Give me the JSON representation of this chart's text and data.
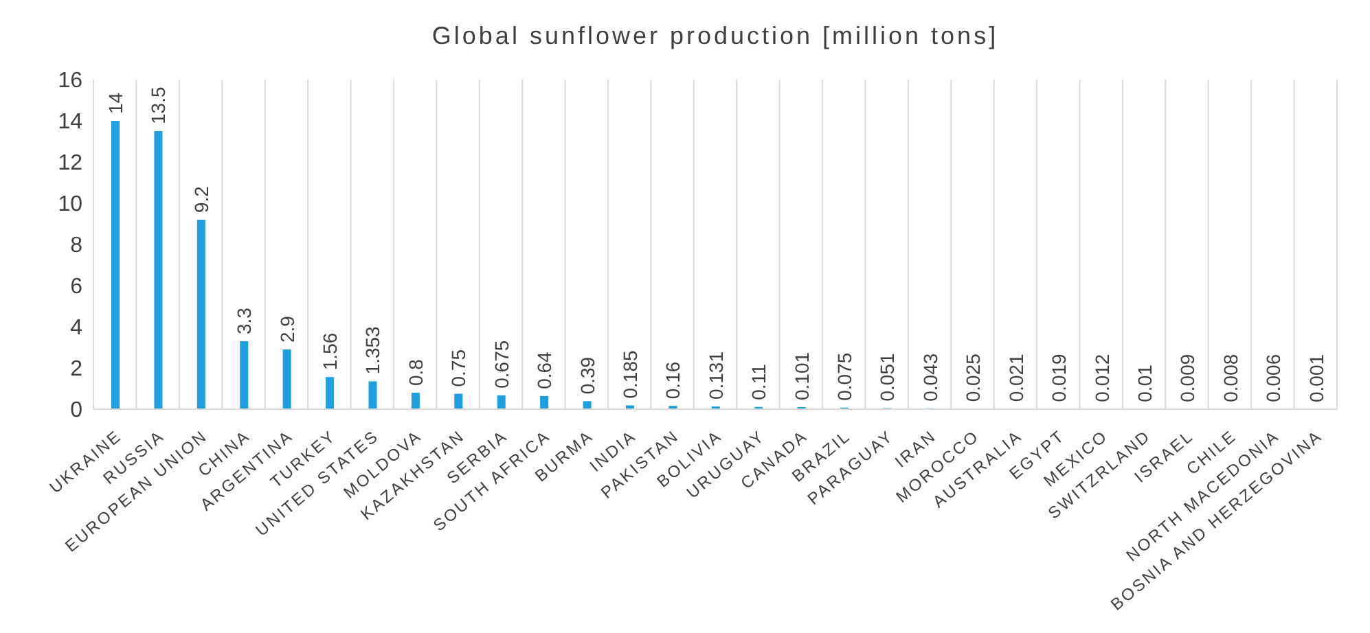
{
  "chart_data": {
    "type": "bar",
    "title": "Global sunflower production [million tons]",
    "categories": [
      "UKRAINE",
      "RUSSIA",
      "EUROPEAN UNION",
      "CHINA",
      "ARGENTINA",
      "TURKEY",
      "UNITED STATES",
      "MOLDOVA",
      "KAZAKHSTAN",
      "SERBIA",
      "SOUTH AFRICA",
      "BURMA",
      "INDIA",
      "PAKISTAN",
      "BOLIVIA",
      "URUGUAY",
      "CANADA",
      "BRAZIL",
      "PARAGUAY",
      "IRAN",
      "MOROCCO",
      "AUSTRALIA",
      "EGYPT",
      "MEXICO",
      "SWITZRLAND",
      "ISRAEL",
      "CHILE",
      "NORTH MACEDONIA",
      "BOSNIA AND HERZEGOVINA"
    ],
    "values": [
      14,
      13.5,
      9.2,
      3.3,
      2.9,
      1.56,
      1.353,
      0.8,
      0.75,
      0.675,
      0.64,
      0.39,
      0.185,
      0.16,
      0.131,
      0.11,
      0.101,
      0.075,
      0.051,
      0.043,
      0.025,
      0.021,
      0.019,
      0.012,
      0.01,
      0.009,
      0.008,
      0.006,
      0.001
    ],
    "color": "#1f9fdf",
    "ylim": [
      0,
      16
    ],
    "yticks": [
      0,
      2,
      4,
      6,
      8,
      10,
      12,
      14,
      16
    ],
    "grid": "x",
    "data_labels": true
  }
}
